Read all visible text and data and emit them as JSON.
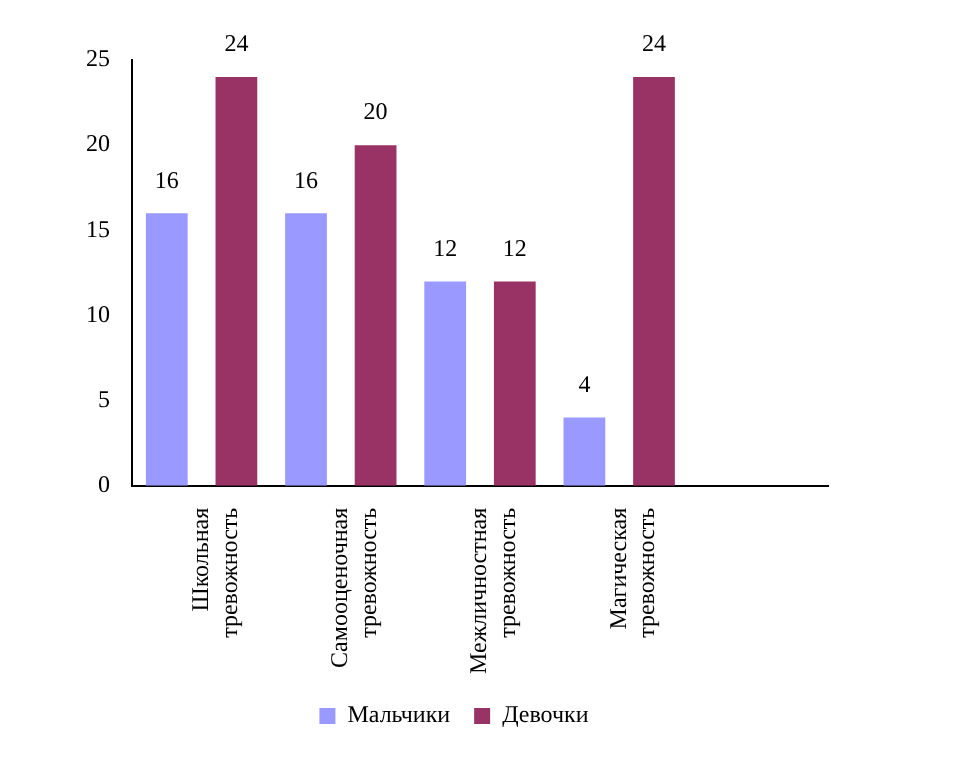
{
  "chart_data": {
    "type": "bar",
    "categories": [
      "Школьная тревожность",
      "Самооценочная тревожность",
      "Межличностная тревожность",
      "Магическая тревожность",
      null
    ],
    "series": [
      {
        "name": "Мальчики",
        "color": "#9999ff",
        "values": [
          16,
          16,
          12,
          4,
          null
        ]
      },
      {
        "name": "Девочки",
        "color": "#993366",
        "values": [
          24,
          20,
          12,
          24,
          null
        ]
      }
    ],
    "ylim": [
      0,
      25
    ],
    "yticks": [
      0,
      5,
      10,
      15,
      20,
      25
    ],
    "grid": false,
    "legend": "bottom",
    "data_labels": true
  }
}
